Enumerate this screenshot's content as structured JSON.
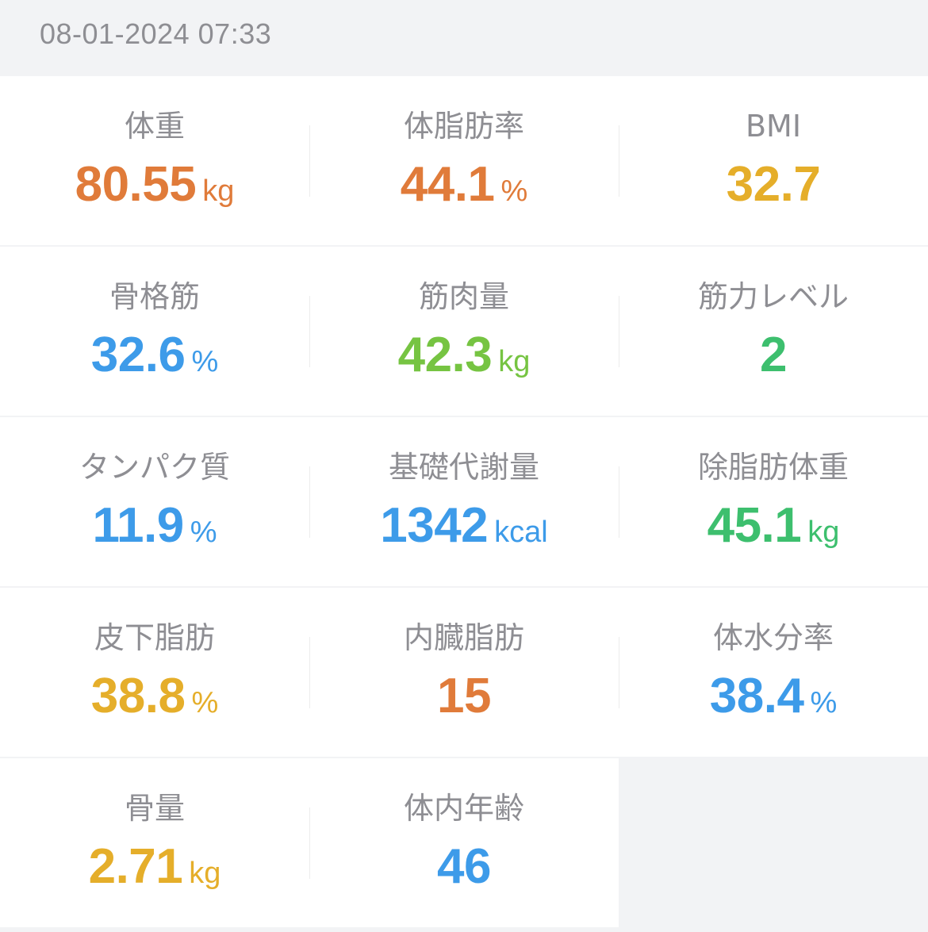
{
  "header": {
    "timestamp": "08-01-2024 07:33"
  },
  "colors": {
    "orange": "#e07b3a",
    "yellow": "#e5ae2a",
    "blue": "#3d9be9",
    "lightgreen": "#76c442",
    "green": "#3dbf6e"
  },
  "metrics": [
    {
      "label": "体重",
      "value": "80.55",
      "unit": "kg",
      "color": "#e07b3a"
    },
    {
      "label": "体脂肪率",
      "value": "44.1",
      "unit": "%",
      "color": "#e07b3a"
    },
    {
      "label": "BMI",
      "value": "32.7",
      "unit": "",
      "color": "#e5ae2a"
    },
    {
      "label": "骨格筋",
      "value": "32.6",
      "unit": "%",
      "color": "#3d9be9"
    },
    {
      "label": "筋肉量",
      "value": "42.3",
      "unit": "kg",
      "color": "#76c442"
    },
    {
      "label": "筋力レベル",
      "value": "2",
      "unit": "",
      "color": "#3dbf6e"
    },
    {
      "label": "タンパク質",
      "value": "11.9",
      "unit": "%",
      "color": "#3d9be9"
    },
    {
      "label": "基礎代謝量",
      "value": "1342",
      "unit": "kcal",
      "color": "#3d9be9"
    },
    {
      "label": "除脂肪体重",
      "value": "45.1",
      "unit": "kg",
      "color": "#3dbf6e"
    },
    {
      "label": "皮下脂肪",
      "value": "38.8",
      "unit": "%",
      "color": "#e5ae2a"
    },
    {
      "label": "内臓脂肪",
      "value": "15",
      "unit": "",
      "color": "#e07b3a"
    },
    {
      "label": "体水分率",
      "value": "38.4",
      "unit": "%",
      "color": "#3d9be9"
    },
    {
      "label": "骨量",
      "value": "2.71",
      "unit": "kg",
      "color": "#e5ae2a"
    },
    {
      "label": "体内年齢",
      "value": "46",
      "unit": "",
      "color": "#3d9be9"
    }
  ]
}
